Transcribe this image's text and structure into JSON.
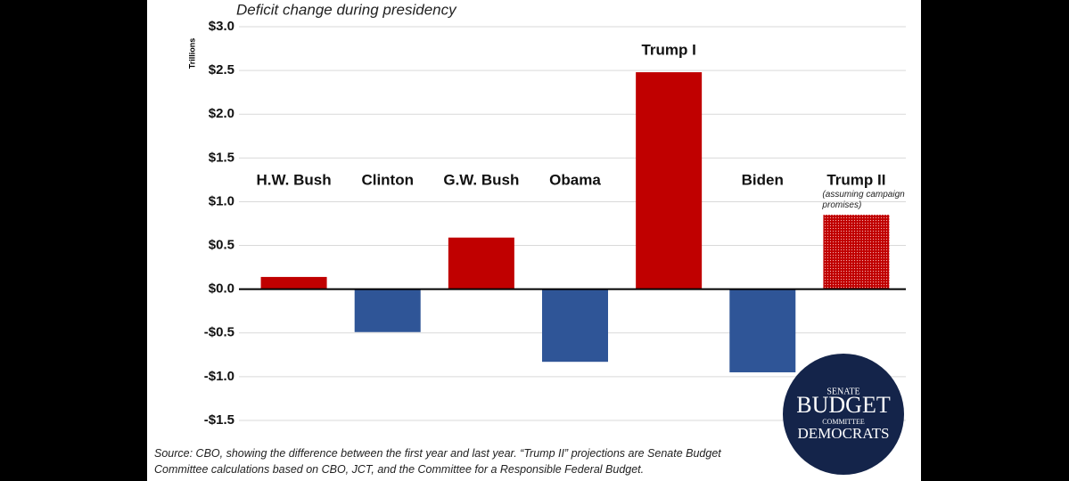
{
  "chart_data": {
    "type": "bar",
    "title": "Deficit change during presidency",
    "y_label": "Trillions",
    "categories": [
      "H.W. Bush",
      "Clinton",
      "G.W. Bush",
      "Obama",
      "Trump I",
      "Biden",
      "Trump II"
    ],
    "values": [
      0.14,
      -0.49,
      0.59,
      -0.83,
      2.48,
      -0.95,
      0.85
    ],
    "colors": [
      "#c00000",
      "#2f5597",
      "#c00000",
      "#2f5597",
      "#c00000",
      "#2f5597",
      "#c00000"
    ],
    "styles": [
      "solid",
      "solid",
      "solid",
      "solid",
      "solid",
      "solid",
      "dotted"
    ],
    "annotation": "(assuming campaign promises)",
    "ylim": [
      -1.5,
      3.0
    ],
    "yticks": [
      {
        "value": -1.5,
        "label": "-$1.5"
      },
      {
        "value": -1.0,
        "label": "-$1.0"
      },
      {
        "value": -0.5,
        "label": "-$0.5"
      },
      {
        "value": 0,
        "label": "$0.0"
      },
      {
        "value": 0.5,
        "label": "$0.5"
      },
      {
        "value": 1.0,
        "label": "$1.0"
      },
      {
        "value": 1.5,
        "label": "$1.5"
      },
      {
        "value": 2.0,
        "label": "$2.0"
      },
      {
        "value": 2.5,
        "label": "$2.5"
      },
      {
        "value": 3.0,
        "label": "$3.0"
      }
    ],
    "grid": true,
    "source": "Source: CBO, showing the difference between the first year and last year. “Trump II” projections are Senate Budget Committee calculations based on CBO, JCT, and the Committee for a Responsible Federal Budget."
  },
  "logo": {
    "top": "SENATE",
    "main": "BUDGET",
    "middle": "COMMITTEE",
    "bottom": "DEMOCRATS"
  }
}
